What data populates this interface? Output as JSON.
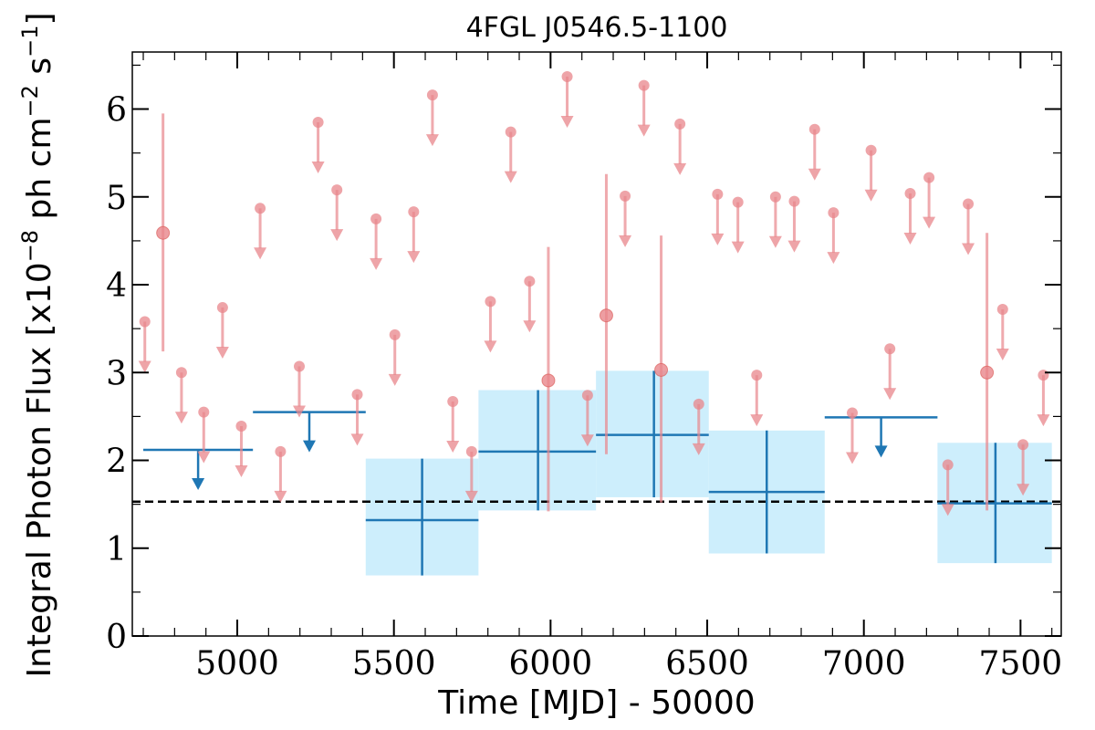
{
  "chart_data": {
    "type": "scatter",
    "title": "4FGL J0546.5-1100",
    "xlabel": "Time [MJD] - 50000",
    "ylabel_main": "Integral Photon Flux [x10",
    "ylabel_exp1": "−8",
    "ylabel_mid": " ph cm",
    "ylabel_exp2": "−2",
    "ylabel_mid2": " s",
    "ylabel_exp3": "−1",
    "ylabel_end": "]",
    "xlim": [
      4665,
      7630
    ],
    "ylim": [
      0,
      6.65
    ],
    "x_ticks": [
      5000,
      5500,
      6000,
      6500,
      7000,
      7500
    ],
    "x_tick_labels": [
      "5000",
      "5500",
      "6000",
      "6500",
      "7000",
      "7500"
    ],
    "y_ticks": [
      0,
      1,
      2,
      3,
      4,
      5,
      6
    ],
    "y_tick_labels": [
      "0",
      "1",
      "2",
      "3",
      "4",
      "5",
      "6"
    ],
    "colors": {
      "short_bin": "#e8868b",
      "long_bin": "#1f77b4",
      "band": "#cdeefc",
      "reference_line": "#000000"
    },
    "reference_flux": 1.53,
    "short_bins": {
      "upper_limits": [
        {
          "x": 4705,
          "y": 3.58
        },
        {
          "x": 4822,
          "y": 3.0
        },
        {
          "x": 4893,
          "y": 2.55
        },
        {
          "x": 4953,
          "y": 3.74
        },
        {
          "x": 5013,
          "y": 2.39
        },
        {
          "x": 5073,
          "y": 4.87
        },
        {
          "x": 5138,
          "y": 2.1
        },
        {
          "x": 5198,
          "y": 3.07
        },
        {
          "x": 5258,
          "y": 5.85
        },
        {
          "x": 5318,
          "y": 5.08
        },
        {
          "x": 5383,
          "y": 2.75
        },
        {
          "x": 5443,
          "y": 4.75
        },
        {
          "x": 5503,
          "y": 3.43
        },
        {
          "x": 5563,
          "y": 4.83
        },
        {
          "x": 5623,
          "y": 6.16
        },
        {
          "x": 5688,
          "y": 2.67
        },
        {
          "x": 5748,
          "y": 2.1
        },
        {
          "x": 5808,
          "y": 3.81
        },
        {
          "x": 5873,
          "y": 5.74
        },
        {
          "x": 5933,
          "y": 4.04
        },
        {
          "x": 6053,
          "y": 6.37
        },
        {
          "x": 6118,
          "y": 2.74
        },
        {
          "x": 6238,
          "y": 5.01
        },
        {
          "x": 6298,
          "y": 6.27
        },
        {
          "x": 6413,
          "y": 5.83
        },
        {
          "x": 6473,
          "y": 2.64
        },
        {
          "x": 6533,
          "y": 5.03
        },
        {
          "x": 6598,
          "y": 4.94
        },
        {
          "x": 6658,
          "y": 2.97
        },
        {
          "x": 6718,
          "y": 5.0
        },
        {
          "x": 6778,
          "y": 4.95
        },
        {
          "x": 6843,
          "y": 5.77
        },
        {
          "x": 6903,
          "y": 4.82
        },
        {
          "x": 6963,
          "y": 2.54
        },
        {
          "x": 7023,
          "y": 5.53
        },
        {
          "x": 7083,
          "y": 3.27
        },
        {
          "x": 7148,
          "y": 5.04
        },
        {
          "x": 7208,
          "y": 5.22
        },
        {
          "x": 7268,
          "y": 1.95
        },
        {
          "x": 7333,
          "y": 4.92
        },
        {
          "x": 7443,
          "y": 3.72
        },
        {
          "x": 7508,
          "y": 2.18
        },
        {
          "x": 7573,
          "y": 2.97
        }
      ],
      "detections": [
        {
          "x": 4763,
          "y": 4.59,
          "y_low": 3.24,
          "y_high": 5.95
        },
        {
          "x": 5993,
          "y": 2.91,
          "y_low": 1.42,
          "y_high": 4.43
        },
        {
          "x": 6178,
          "y": 3.65,
          "y_low": 2.07,
          "y_high": 5.26
        },
        {
          "x": 6353,
          "y": 3.03,
          "y_low": 1.52,
          "y_high": 4.56
        },
        {
          "x": 7393,
          "y": 3.0,
          "y_low": 1.43,
          "y_high": 4.59
        }
      ]
    },
    "long_bins": {
      "upper_limits": [
        {
          "x_start": 4700,
          "x_end": 5050,
          "y": 2.12
        },
        {
          "x_start": 5050,
          "x_end": 5410,
          "y": 2.55
        },
        {
          "x_start": 6875,
          "x_end": 7235,
          "y": 2.49
        }
      ],
      "detections": [
        {
          "x_start": 5410,
          "x_end": 5770,
          "x": 5590,
          "y": 1.32,
          "y_low": 0.69,
          "y_high": 2.02
        },
        {
          "x_start": 5770,
          "x_end": 6145,
          "x": 5960,
          "y": 2.1,
          "y_low": 1.43,
          "y_high": 2.8
        },
        {
          "x_start": 6145,
          "x_end": 6505,
          "x": 6330,
          "y": 2.29,
          "y_low": 1.58,
          "y_high": 3.02
        },
        {
          "x_start": 6505,
          "x_end": 6875,
          "x": 6690,
          "y": 1.64,
          "y_low": 0.94,
          "y_high": 2.34
        },
        {
          "x_start": 7235,
          "x_end": 7600,
          "x": 7420,
          "y": 1.51,
          "y_low": 0.83,
          "y_high": 2.2
        }
      ]
    }
  }
}
